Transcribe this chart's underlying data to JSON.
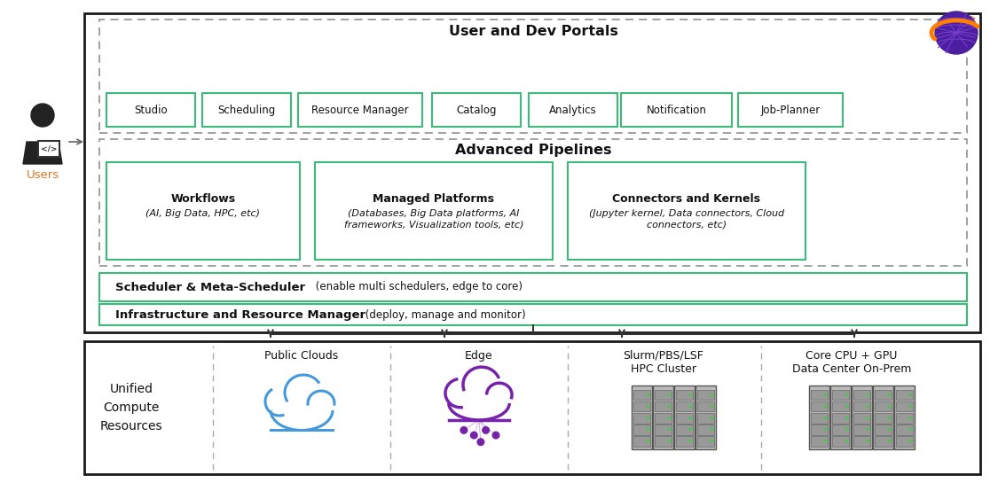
{
  "bg_color": "#ffffff",
  "outer_border_color": "#1a1a1a",
  "green_border": "#3dba78",
  "dashed_border": "#999999",
  "text_dark": "#111111",
  "portal_labels": [
    "Studio",
    "Scheduling",
    "Resource Manager",
    "Catalog",
    "Analytics",
    "Notification",
    "Job-Planner"
  ],
  "scheduler_text_bold": "Scheduler & Meta-Scheduler",
  "scheduler_text_normal": " (enable multi schedulers, edge to core)",
  "infra_text_bold": "Infrastructure and Resource Manager",
  "infra_text_normal": " (deploy, manage and monitor)",
  "compute_sections": [
    "Public Clouds",
    "Edge",
    "Slurm/PBS/LSF\nHPC Cluster",
    "Core CPU + GPU\nData Center On-Prem"
  ],
  "user_label": "Users",
  "arrow_color": "#444444",
  "user_label_color": "#e07820"
}
